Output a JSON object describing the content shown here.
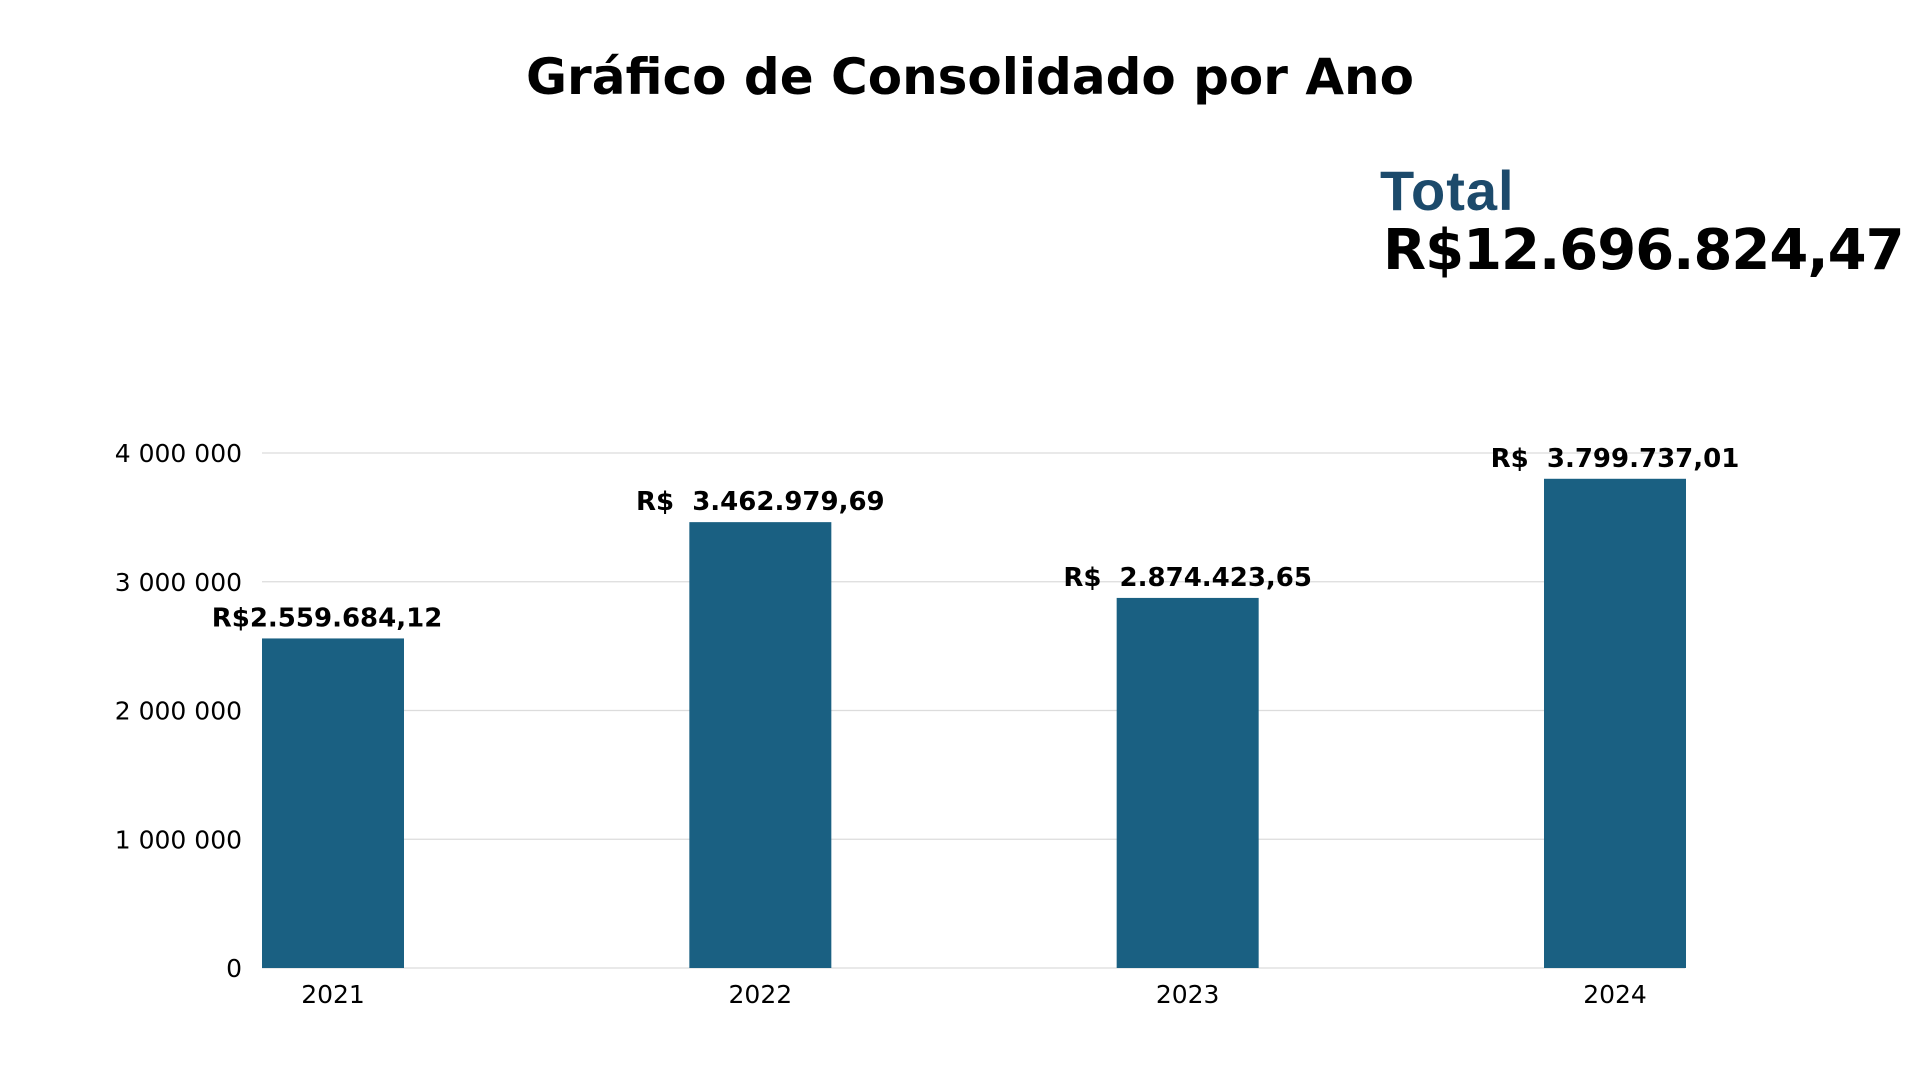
{
  "header": {
    "title": "Gráfico de Consolidado por Ano"
  },
  "summary": {
    "total_label": "Total",
    "total_value": "R$12.696.824,47"
  },
  "colors": {
    "bar": "#1a6082",
    "total_label": "#1c4a6b",
    "grid": "#dcdcdc",
    "text": "#000000"
  },
  "chart_data": {
    "type": "bar",
    "title": "Gráfico de Consolidado por Ano",
    "xlabel": "",
    "ylabel": "",
    "categories": [
      "2021",
      "2022",
      "2023",
      "2024"
    ],
    "values": [
      2559684.12,
      3462979.69,
      2874423.65,
      3799737.01
    ],
    "data_labels": [
      "R$2.559.684,12",
      "R$  3.462.979,69",
      "R$  2.874.423,65",
      "R$  3.799.737,01"
    ],
    "ylim": [
      0,
      4000000
    ],
    "yticks": [
      0,
      1000000,
      2000000,
      3000000,
      4000000
    ],
    "ytick_labels": [
      "0",
      "1 000 000",
      "2 000 000",
      "3 000 000",
      "4 000 000"
    ],
    "grid": true,
    "legend": "none"
  }
}
